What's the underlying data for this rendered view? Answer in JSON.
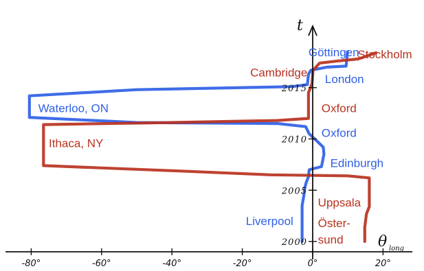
{
  "chart_data": {
    "type": "line",
    "xlabel": "θlong",
    "xlabel_main": "θ",
    "xlabel_sub": "long",
    "ylabel": "t",
    "xlim": [
      -82,
      22
    ],
    "ylim": [
      1999.5,
      2018.5
    ],
    "x_ticks": [
      {
        "value": -80,
        "label": "-80°"
      },
      {
        "value": -60,
        "label": "-60°"
      },
      {
        "value": -40,
        "label": "-40°"
      },
      {
        "value": -20,
        "label": "-20°"
      },
      {
        "value": 0,
        "label": "0°"
      },
      {
        "value": 20,
        "label": "20°"
      }
    ],
    "y_ticks": [
      {
        "value": 2000,
        "label": "2000"
      },
      {
        "value": 2005,
        "label": "2005"
      },
      {
        "value": 2010,
        "label": "2010"
      },
      {
        "value": 2015,
        "label": "2015"
      }
    ],
    "series": [
      {
        "color": "#2f5fe6",
        "points": [
          [
            -3,
            2000
          ],
          [
            -3,
            2003.5
          ],
          [
            -2.5,
            2004.5
          ],
          [
            -2.2,
            2005.3
          ],
          [
            -1.8,
            2005.8
          ],
          [
            -1.2,
            2006.3
          ],
          [
            -1,
            2007
          ],
          [
            2.5,
            2007.3
          ],
          [
            3.2,
            2008.5
          ],
          [
            3,
            2009.2
          ],
          [
            1.2,
            2009.8
          ],
          [
            -1,
            2010.5
          ],
          [
            -2,
            2011.2
          ],
          [
            -10,
            2011.5
          ],
          [
            -50,
            2011.6
          ],
          [
            -80.5,
            2012.1
          ],
          [
            -80.5,
            2014.2
          ],
          [
            -50,
            2014.8
          ],
          [
            -6,
            2015.1
          ],
          [
            -1.5,
            2015.3
          ],
          [
            -1.2,
            2016.3
          ],
          [
            -0.5,
            2016.7
          ],
          [
            4,
            2017
          ],
          [
            9.5,
            2017.1
          ],
          [
            9.9,
            2018.5
          ]
        ]
      },
      {
        "color": "#b8321f",
        "points": [
          [
            14.8,
            2000
          ],
          [
            14.8,
            2001.4
          ],
          [
            15.3,
            2002.7
          ],
          [
            16.1,
            2003.4
          ],
          [
            16.1,
            2006.2
          ],
          [
            10,
            2006.4
          ],
          [
            -12,
            2006.5
          ],
          [
            -40,
            2006.9
          ],
          [
            -76.5,
            2007.4
          ],
          [
            -76.5,
            2011.4
          ],
          [
            -40,
            2011.6
          ],
          [
            -10,
            2011.8
          ],
          [
            -1.2,
            2012
          ],
          [
            -1.2,
            2014.5
          ],
          [
            -0.2,
            2015.4
          ],
          [
            0.1,
            2016.7
          ],
          [
            2,
            2017.4
          ],
          [
            7,
            2017.6
          ],
          [
            13,
            2017.8
          ],
          [
            18,
            2018.4
          ]
        ]
      }
    ],
    "annotations": [
      {
        "text": "Göttingen",
        "x": 6.0,
        "y": 2018.45,
        "color": "#2f5fe6",
        "anchor": "middle"
      },
      {
        "text": "Stockholm",
        "x": 20.5,
        "y": 2018.25,
        "color": "#b8321f",
        "anchor": "middle"
      },
      {
        "text": "Cambridge",
        "x": -1.5,
        "y": 2016.5,
        "color": "#b8321f",
        "anchor": "end"
      },
      {
        "text": "London",
        "x": 3.5,
        "y": 2015.85,
        "color": "#2f5fe6",
        "anchor": "start"
      },
      {
        "text": "Waterloo, ON",
        "x": -78,
        "y": 2013.0,
        "color": "#2f5fe6",
        "anchor": "start"
      },
      {
        "text": "Oxford",
        "x": 2.5,
        "y": 2013.0,
        "color": "#b8321f",
        "anchor": "start"
      },
      {
        "text": "Ithaca, NY",
        "x": -75,
        "y": 2009.6,
        "color": "#b8321f",
        "anchor": "start"
      },
      {
        "text": "Oxford",
        "x": 2.5,
        "y": 2010.6,
        "color": "#2f5fe6",
        "anchor": "start"
      },
      {
        "text": "Edinburgh",
        "x": 5.0,
        "y": 2007.65,
        "color": "#2f5fe6",
        "anchor": "start"
      },
      {
        "text": "Uppsala",
        "x": 1.5,
        "y": 2003.8,
        "color": "#b8321f",
        "anchor": "start"
      },
      {
        "text": "Liverpool",
        "x": -5.5,
        "y": 2002.0,
        "color": "#2f5fe6",
        "anchor": "end"
      },
      {
        "text": "Öster-",
        "x": 1.5,
        "y": 2001.8,
        "color": "#b8321f",
        "anchor": "start"
      },
      {
        "text": "sund",
        "x": 1.5,
        "y": 2000.2,
        "color": "#b8321f",
        "anchor": "start"
      }
    ]
  }
}
